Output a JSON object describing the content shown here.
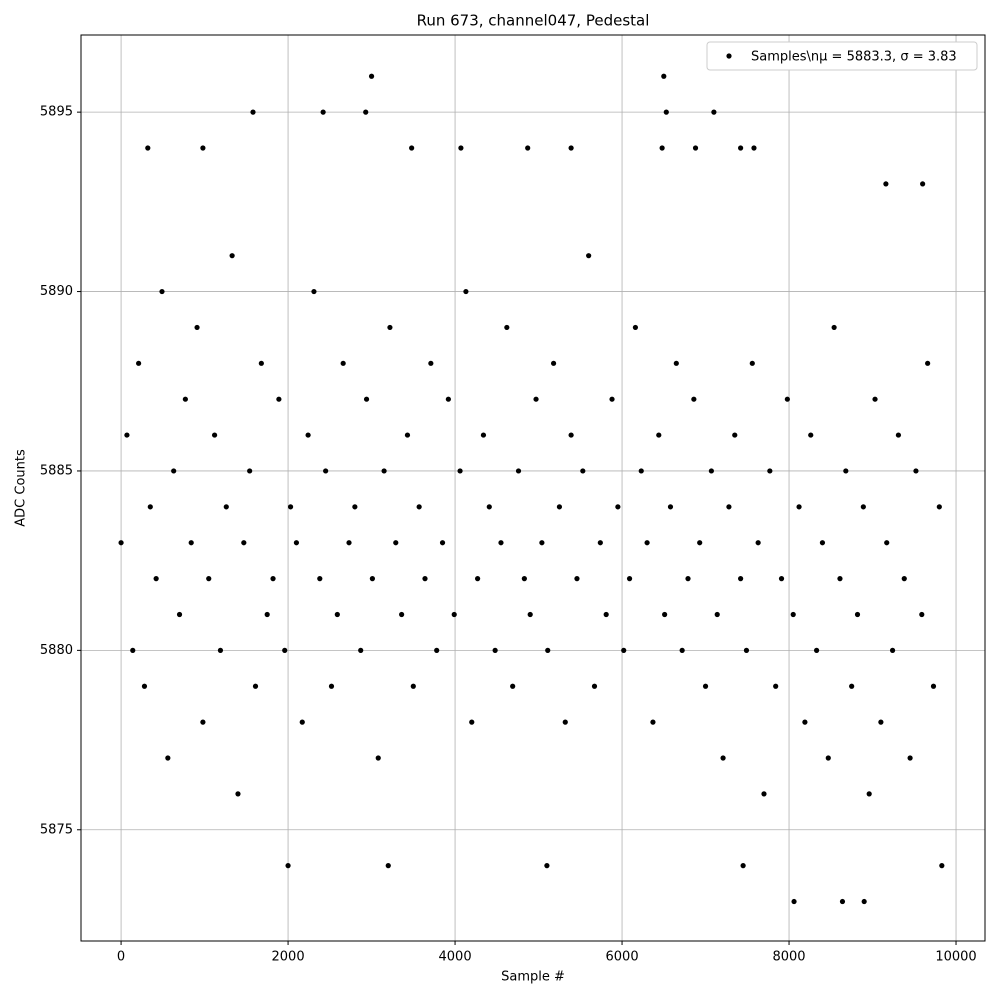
{
  "chart_data": {
    "type": "scatter",
    "title": "Run 673, channel047, Pedestal",
    "x_label": "Sample #",
    "y_label": "ADC Counts",
    "xlim": [
      -480,
      10347
    ],
    "ylim": [
      5871.9,
      5897.15
    ],
    "xticks": [
      0,
      2000,
      4000,
      6000,
      8000,
      10000
    ],
    "yticks": [
      5875,
      5880,
      5885,
      5890,
      5895
    ],
    "grid": true,
    "legend": "upper right",
    "x": [
      0,
      70,
      140,
      210,
      280,
      350,
      420,
      490,
      560,
      630,
      700,
      770,
      840,
      910,
      980,
      1050,
      1120,
      1190,
      1260,
      1330,
      1400,
      1470,
      1540,
      1610,
      1680,
      1750,
      1820,
      1890,
      1960,
      2030,
      2100,
      2170,
      2240,
      2310,
      2380,
      2450,
      2520,
      2590,
      2660,
      2730,
      2800,
      2870,
      2940,
      3010,
      3080,
      3150,
      3220,
      3290,
      3360,
      3430,
      3500,
      3570,
      3640,
      3710,
      3780,
      3850,
      3920,
      3990,
      4060,
      4130,
      4200,
      4270,
      4340,
      4410,
      4480,
      4550,
      4620,
      4690,
      4760,
      4830,
      4900,
      4970,
      5040,
      5110,
      5180,
      5250,
      5320,
      5390,
      5460,
      5530,
      5600,
      5670,
      5740,
      5810,
      5880,
      5950,
      6020,
      6090,
      6160,
      6230,
      6300,
      6370,
      6440,
      6510,
      6580,
      6650,
      6720,
      6790,
      6860,
      6930,
      7000,
      7070,
      7140,
      7210,
      7280,
      7350,
      7420,
      7490,
      7560,
      7630,
      7700,
      7770,
      7840,
      7910,
      7980,
      8050,
      8120,
      8190,
      8260,
      8330,
      8400,
      8470,
      8540,
      8610,
      8680,
      8750,
      8820,
      8890,
      8960,
      9030,
      9100,
      9170,
      9240,
      9310,
      9380,
      9450,
      9520,
      9590,
      9660,
      9730,
      9800,
      3000,
      6500,
      1580,
      2420,
      2930,
      6530,
      7100,
      8060,
      8640,
      8900,
      2000,
      3200,
      5100,
      7450,
      9830,
      320,
      980,
      3480,
      4070,
      4870,
      5390,
      6480,
      6880,
      7420,
      7580,
      9160,
      9600
    ],
    "series": [
      {
        "name": "Samples\\nμ = 5883.3, σ = 3.83",
        "color": "#000000",
        "values": [
          5883,
          5886,
          5880,
          5888,
          5879,
          5884,
          5882,
          5890,
          5877,
          5885,
          5881,
          5887,
          5883,
          5889,
          5878,
          5882,
          5886,
          5880,
          5884,
          5891,
          5876,
          5883,
          5885,
          5879,
          5888,
          5881,
          5882,
          5887,
          5880,
          5884,
          5883,
          5878,
          5886,
          5890,
          5882,
          5885,
          5879,
          5881,
          5888,
          5883,
          5884,
          5880,
          5887,
          5882,
          5877,
          5885,
          5889,
          5883,
          5881,
          5886,
          5879,
          5884,
          5882,
          5888,
          5880,
          5883,
          5887,
          5881,
          5885,
          5890,
          5878,
          5882,
          5886,
          5884,
          5880,
          5883,
          5889,
          5879,
          5885,
          5882,
          5881,
          5887,
          5883,
          5880,
          5888,
          5884,
          5878,
          5886,
          5882,
          5885,
          5891,
          5879,
          5883,
          5881,
          5887,
          5884,
          5880,
          5882,
          5889,
          5885,
          5883,
          5878,
          5886,
          5881,
          5884,
          5888,
          5880,
          5882,
          5887,
          5883,
          5879,
          5885,
          5881,
          5877,
          5884,
          5886,
          5882,
          5880,
          5888,
          5883,
          5876,
          5885,
          5879,
          5882,
          5887,
          5881,
          5884,
          5878,
          5886,
          5880,
          5883,
          5877,
          5889,
          5882,
          5885,
          5879,
          5881,
          5884,
          5876,
          5887,
          5878,
          5883,
          5880,
          5886,
          5882,
          5877,
          5885,
          5881,
          5888,
          5879,
          5884,
          5896,
          5896,
          5895,
          5895,
          5895,
          5895,
          5895,
          5873,
          5873,
          5873,
          5874,
          5874,
          5874,
          5874,
          5874,
          5894,
          5894,
          5894,
          5894,
          5894,
          5894,
          5894,
          5894,
          5894,
          5894,
          5893,
          5893
        ]
      }
    ]
  }
}
